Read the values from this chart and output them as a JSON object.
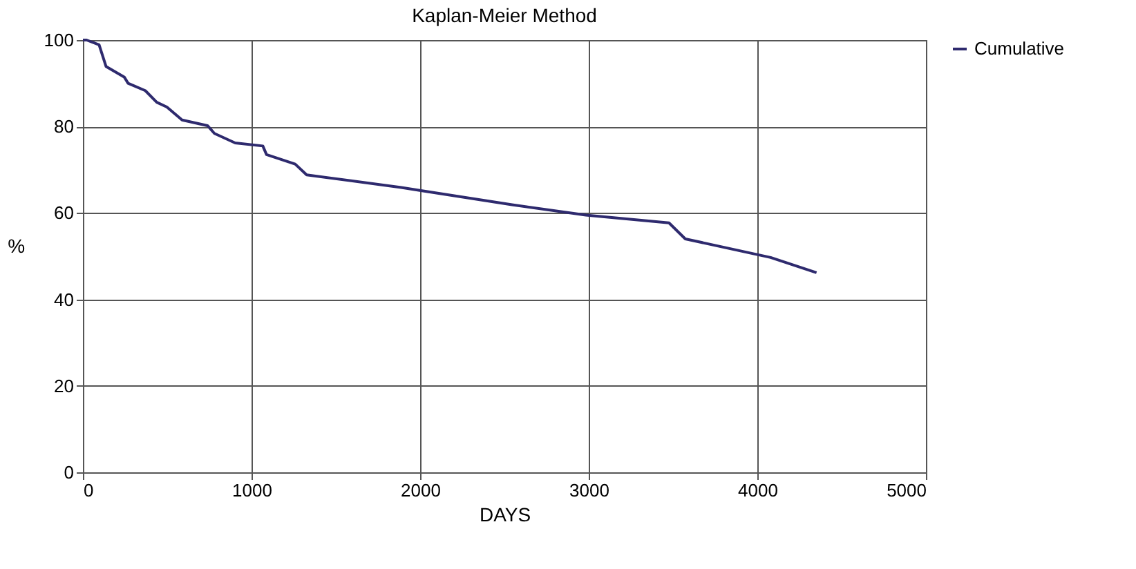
{
  "chart_data": {
    "type": "line",
    "title": "Kaplan-Meier Method",
    "xlabel": "DAYS",
    "ylabel": "%",
    "series": [
      {
        "name": "Cumulative",
        "color": "#2e2a6e",
        "x": [
          0,
          22,
          96,
          137,
          246,
          268,
          370,
          438,
          498,
          588,
          739,
          780,
          903,
          1067,
          1089,
          1259,
          1327,
          1888,
          1998,
          2545,
          2983,
          3476,
          3573,
          4079,
          4351
        ],
        "values": [
          100,
          100,
          98.9,
          93.9,
          91.4,
          90,
          88.3,
          85.6,
          84.5,
          81.5,
          80.2,
          78.4,
          76.2,
          75.5,
          73.5,
          71.3,
          68.8,
          65.9,
          65.2,
          61.9,
          59.5,
          57.7,
          54,
          49.7,
          46.2
        ]
      }
    ],
    "xlim": [
      0,
      5000
    ],
    "xticks": [
      0,
      1000,
      2000,
      3000,
      4000,
      5000
    ],
    "ylim": [
      0,
      100
    ],
    "yticks": [
      0,
      20,
      40,
      60,
      80,
      100
    ],
    "grid": true,
    "legend": "right",
    "marker": "none",
    "line_style": "solid"
  }
}
